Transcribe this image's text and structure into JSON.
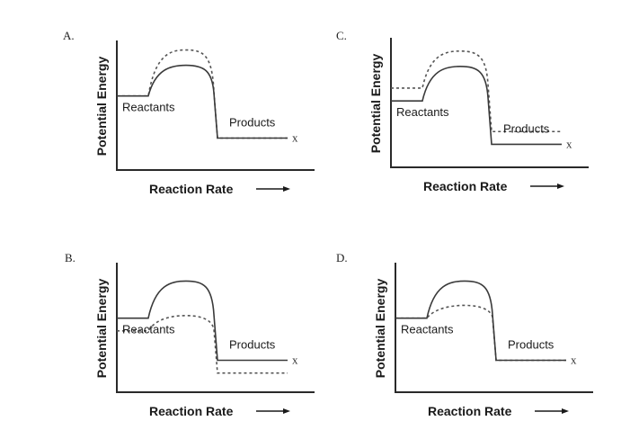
{
  "diagram": {
    "type": "energy-profile-comparison",
    "panels": [
      {
        "id": "A",
        "letter": "A.",
        "y_axis_label": "Potential Energy",
        "x_axis_label": "Reaction Rate",
        "reactants_label": "Reactants",
        "products_label": "Products",
        "x_marker": "x",
        "solid": {
          "reactant_level": 0.58,
          "peak": 0.82,
          "product_level": 0.25
        },
        "dashed": {
          "reactant_level": 0.58,
          "peak": 0.94,
          "product_level": 0.25,
          "dashed_flat_start": false,
          "dashed_flat_end": false
        },
        "dashed_description": "higher peak, same reactant and product levels"
      },
      {
        "id": "C",
        "letter": "C.",
        "y_axis_label": "Potential Energy",
        "x_axis_label": "Reaction Rate",
        "reactants_label": "Reactants",
        "products_label": "Products",
        "x_marker": "x",
        "solid": {
          "reactant_level": 0.52,
          "peak": 0.79,
          "product_level": 0.18
        },
        "dashed": {
          "reactant_level": 0.62,
          "peak": 0.91,
          "product_level": 0.28,
          "dashed_flat_start": true,
          "dashed_flat_end": true
        },
        "dashed_description": "all levels shifted higher"
      },
      {
        "id": "B",
        "letter": "B.",
        "y_axis_label": "Potential Energy",
        "x_axis_label": "Reaction Rate",
        "reactants_label": "Reactants",
        "products_label": "Products",
        "x_marker": "x",
        "solid": {
          "reactant_level": 0.58,
          "peak": 0.87,
          "product_level": 0.25
        },
        "dashed": {
          "reactant_level": 0.48,
          "peak": 0.6,
          "product_level": 0.15,
          "dashed_flat_start": true,
          "dashed_flat_end": true
        },
        "dashed_description": "all levels shifted lower"
      },
      {
        "id": "D",
        "letter": "D.",
        "y_axis_label": "Potential Energy",
        "x_axis_label": "Reaction Rate",
        "reactants_label": "Reactants",
        "products_label": "Products",
        "x_marker": "x",
        "solid": {
          "reactant_level": 0.58,
          "peak": 0.87,
          "product_level": 0.25
        },
        "dashed": {
          "reactant_level": 0.58,
          "peak": 0.68,
          "product_level": 0.25,
          "dashed_flat_start": false,
          "dashed_flat_end": false
        },
        "dashed_description": "lower peak, same reactant and product levels"
      }
    ]
  }
}
